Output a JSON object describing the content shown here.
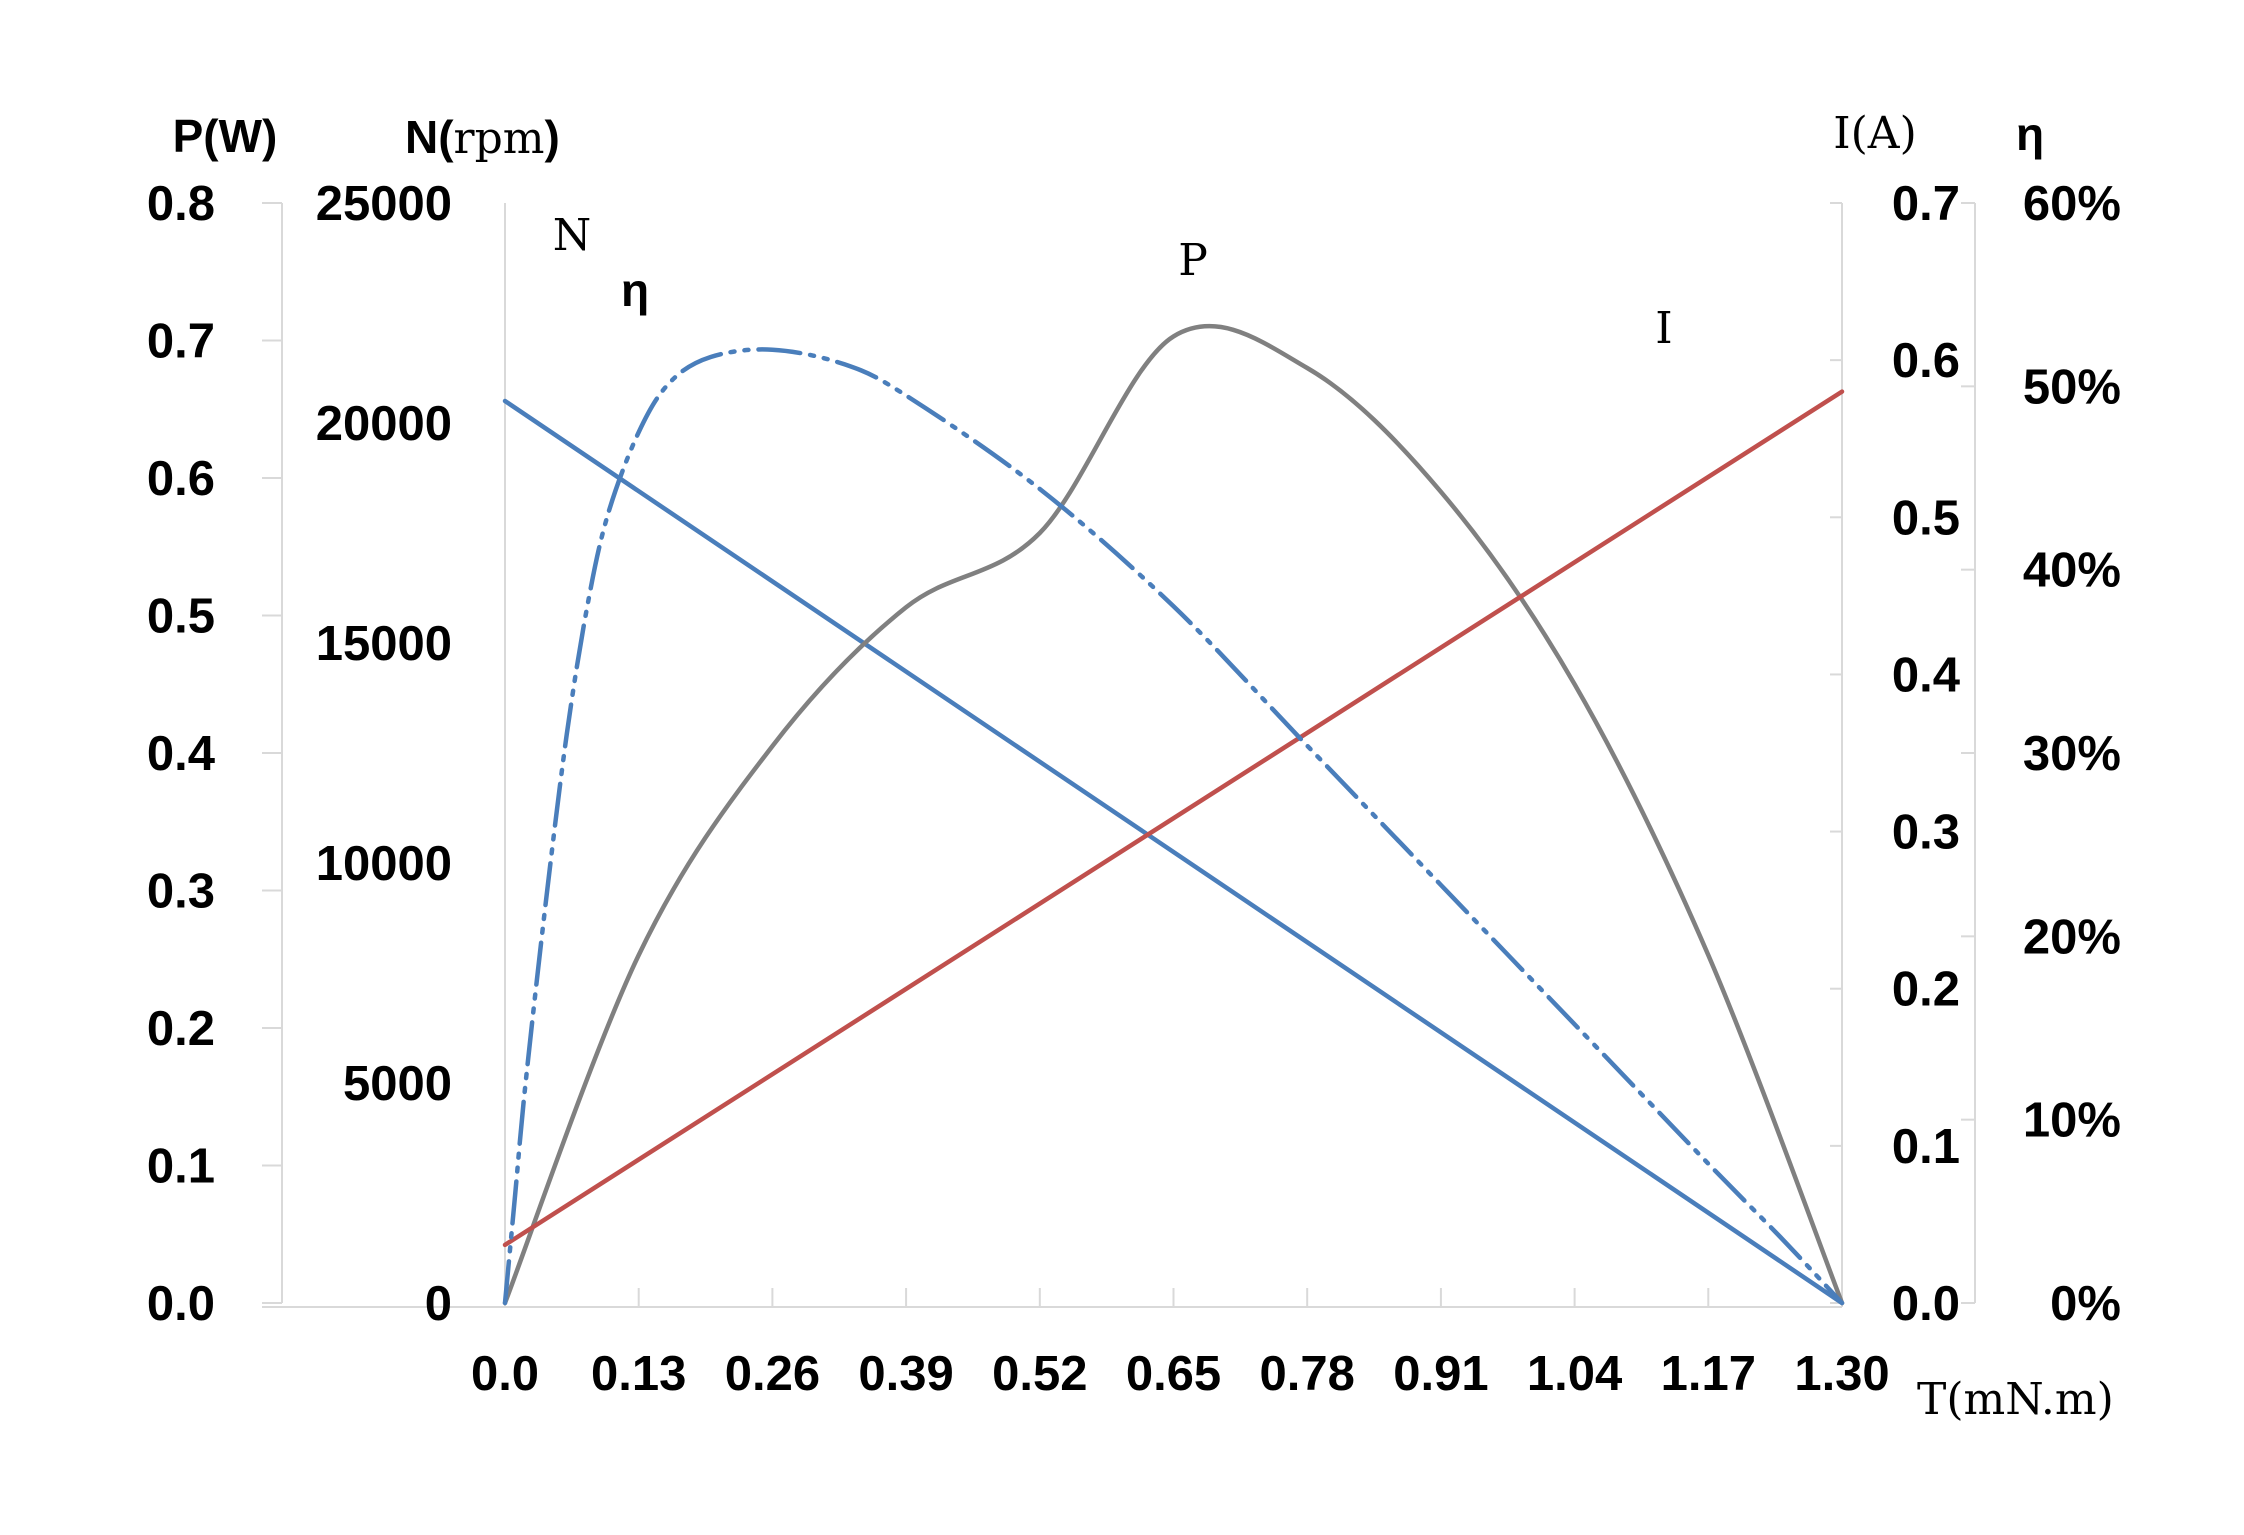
{
  "chart_data": {
    "type": "line",
    "x": {
      "title": "T(mN.m)",
      "ticks": [
        "0.0",
        "0.13",
        "0.26",
        "0.39",
        "0.52",
        "0.65",
        "0.78",
        "0.91",
        "1.04",
        "1.17",
        "1.30"
      ],
      "range": [
        0,
        1.3
      ]
    },
    "axes": {
      "power": {
        "title": "P(W)",
        "ticks": [
          "0.0",
          "0.1",
          "0.2",
          "0.3",
          "0.4",
          "0.5",
          "0.6",
          "0.7",
          "0.8"
        ],
        "range": [
          0,
          0.8
        ]
      },
      "speed": {
        "title_bold": "N(",
        "title_unit": "rpm",
        "title_close": ")",
        "ticks": [
          "0",
          "5000",
          "10000",
          "15000",
          "20000",
          "25000"
        ],
        "range": [
          0,
          25000
        ]
      },
      "current": {
        "title": "I(A)",
        "ticks": [
          "0.0",
          "0.1",
          "0.2",
          "0.3",
          "0.4",
          "0.5",
          "0.6",
          "0.7"
        ],
        "range": [
          0,
          0.7
        ]
      },
      "efficiency": {
        "title": "η",
        "ticks": [
          "0%",
          "10%",
          "20%",
          "30%",
          "40%",
          "50%",
          "60%"
        ],
        "range": [
          0,
          60
        ]
      }
    },
    "series": [
      {
        "name": "N",
        "axis": "speed",
        "color": "#4a7ebb",
        "style": "solid",
        "points": [
          [
            0,
            20500
          ],
          [
            1.3,
            0
          ]
        ]
      },
      {
        "name": "P",
        "axis": "power",
        "color": "#808080",
        "style": "solid",
        "points": [
          [
            0,
            0
          ],
          [
            0.13,
            0.253
          ],
          [
            0.26,
            0.405
          ],
          [
            0.39,
            0.506
          ],
          [
            0.52,
            0.56
          ],
          [
            0.65,
            0.703
          ],
          [
            0.78,
            0.68
          ],
          [
            0.91,
            0.59
          ],
          [
            1.04,
            0.45
          ],
          [
            1.17,
            0.253
          ],
          [
            1.3,
            0
          ]
        ]
      },
      {
        "name": "I",
        "axis": "current",
        "color": "#c0504d",
        "style": "solid",
        "points": [
          [
            0,
            0.037
          ],
          [
            1.3,
            0.58
          ]
        ]
      },
      {
        "name": "η",
        "axis": "efficiency",
        "color": "#4a7ebb",
        "style": "dash-dot-dot",
        "points": [
          [
            0,
            0
          ],
          [
            0.01,
            6
          ],
          [
            0.02,
            12
          ],
          [
            0.04,
            22
          ],
          [
            0.06,
            31
          ],
          [
            0.08,
            38
          ],
          [
            0.1,
            43
          ],
          [
            0.13,
            47.5
          ],
          [
            0.16,
            50.2
          ],
          [
            0.2,
            51.6
          ],
          [
            0.26,
            52
          ],
          [
            0.33,
            51.2
          ],
          [
            0.39,
            49.5
          ],
          [
            0.52,
            44.4
          ],
          [
            0.65,
            38
          ],
          [
            0.78,
            30.4
          ],
          [
            0.91,
            22.8
          ],
          [
            1.04,
            15.2
          ],
          [
            1.17,
            7.6
          ],
          [
            1.24,
            3.6
          ],
          [
            1.3,
            0
          ]
        ]
      }
    ],
    "annotations": [
      {
        "text": "N",
        "series": "N"
      },
      {
        "text": "η",
        "series": "η"
      },
      {
        "text": "P",
        "series": "P"
      },
      {
        "text": "I",
        "series": "I"
      }
    ],
    "grid": false,
    "legend": "none"
  }
}
